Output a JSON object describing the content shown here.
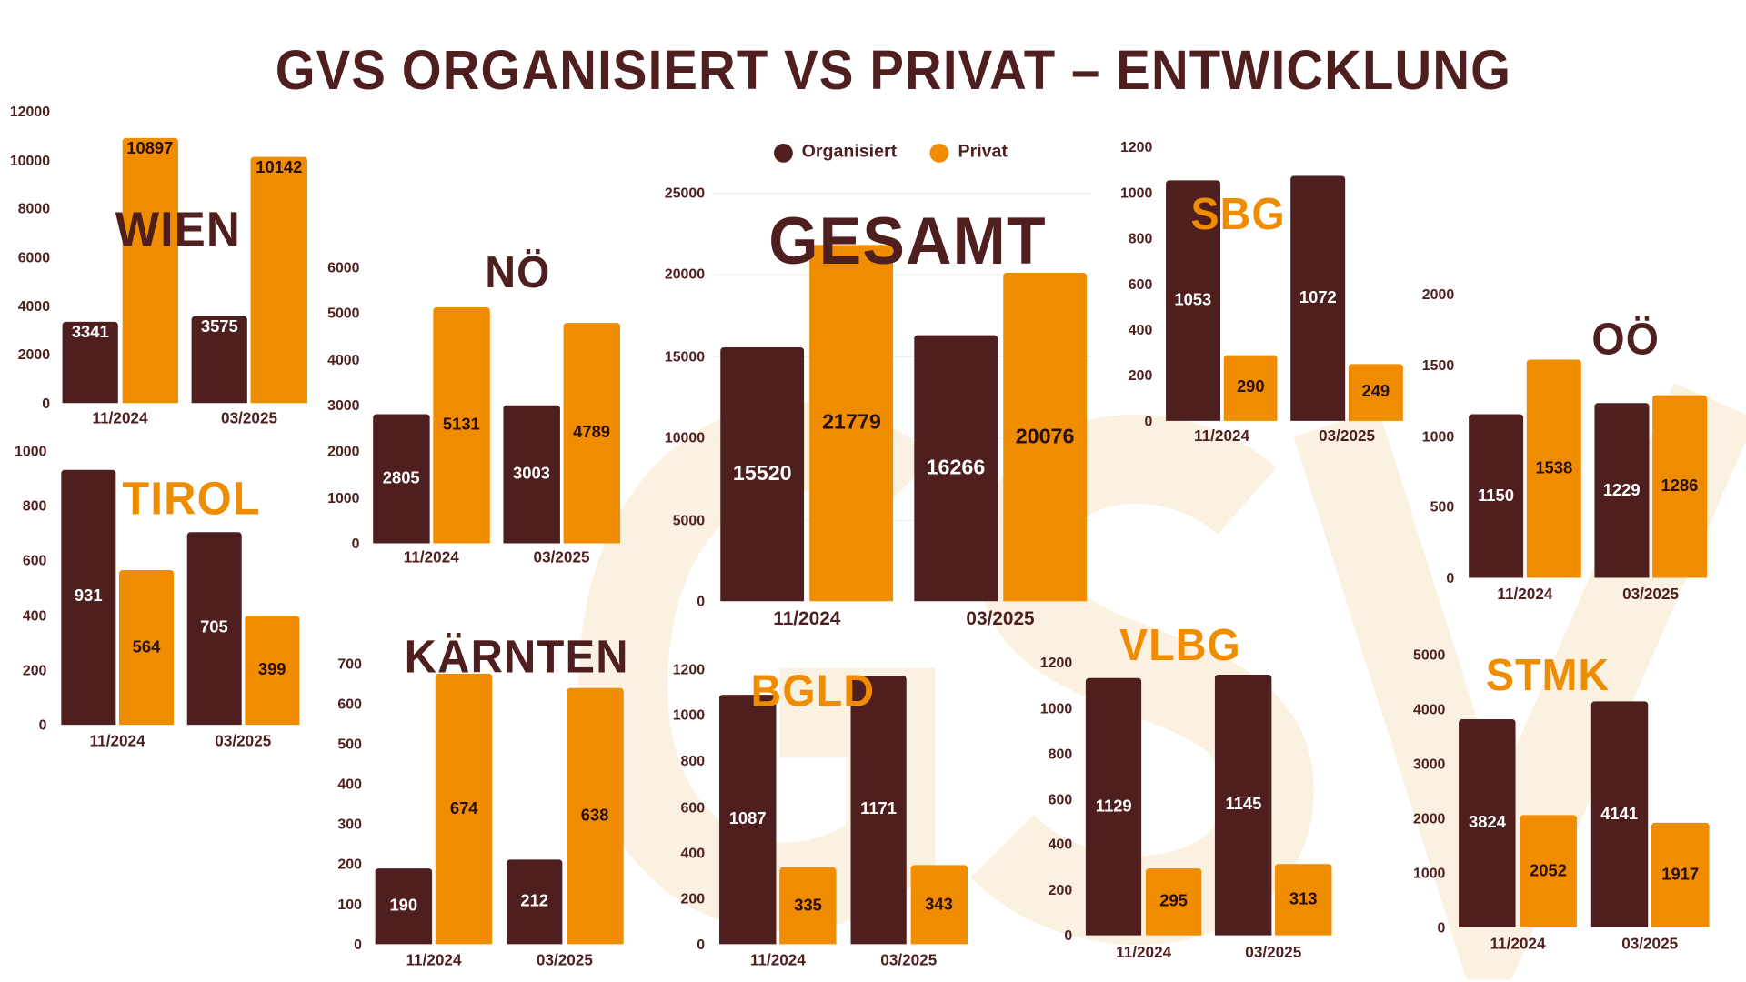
{
  "title": "GVS ORGANISIERT VS PRIVAT – ENTWICKLUNG",
  "watermark": "GSV",
  "colors": {
    "organisiert": "#4f1f1f",
    "privat": "#ef8c00"
  },
  "legend": [
    {
      "label": "Organisiert",
      "color": "#4f1f1f"
    },
    {
      "label": "Privat",
      "color": "#ef8c00"
    }
  ],
  "chart_data": [
    {
      "id": "wien",
      "type": "bar",
      "title": "WIEN",
      "title_color": "#4f1f1f",
      "categories": [
        "11/2024",
        "03/2025"
      ],
      "series": [
        {
          "name": "Organisiert",
          "values": [
            3341,
            3575
          ]
        },
        {
          "name": "Privat",
          "values": [
            10897,
            10142
          ]
        }
      ],
      "ylim": [
        0,
        12000
      ],
      "yticks": [
        0,
        2000,
        4000,
        6000,
        8000,
        10000,
        12000
      ]
    },
    {
      "id": "noe",
      "type": "bar",
      "title": "NÖ",
      "title_color": "#4f1f1f",
      "categories": [
        "11/2024",
        "03/2025"
      ],
      "series": [
        {
          "name": "Organisiert",
          "values": [
            2805,
            3003
          ]
        },
        {
          "name": "Privat",
          "values": [
            5131,
            4789
          ]
        }
      ],
      "ylim": [
        0,
        6000
      ],
      "yticks": [
        0,
        1000,
        2000,
        3000,
        4000,
        5000,
        6000
      ]
    },
    {
      "id": "gesamt",
      "type": "bar",
      "title": "GESAMT",
      "title_color": "#4f1f1f",
      "categories": [
        "11/2024",
        "03/2025"
      ],
      "series": [
        {
          "name": "Organisiert",
          "values": [
            15520,
            16266
          ]
        },
        {
          "name": "Privat",
          "values": [
            21779,
            20076
          ]
        }
      ],
      "ylim": [
        0,
        25000
      ],
      "yticks": [
        0,
        5000,
        10000,
        15000,
        20000,
        25000
      ]
    },
    {
      "id": "sbg",
      "type": "bar",
      "title": "SBG",
      "title_color": "#ef8c00",
      "categories": [
        "11/2024",
        "03/2025"
      ],
      "series": [
        {
          "name": "Organisiert",
          "values": [
            1053,
            1072
          ]
        },
        {
          "name": "Privat",
          "values": [
            290,
            249
          ]
        }
      ],
      "ylim": [
        0,
        1200
      ],
      "yticks": [
        0,
        200,
        400,
        600,
        800,
        1000,
        1200
      ]
    },
    {
      "id": "ooe",
      "type": "bar",
      "title": "OÖ",
      "title_color": "#4f1f1f",
      "categories": [
        "11/2024",
        "03/2025"
      ],
      "series": [
        {
          "name": "Organisiert",
          "values": [
            1150,
            1229
          ]
        },
        {
          "name": "Privat",
          "values": [
            1538,
            1286
          ]
        }
      ],
      "ylim": [
        0,
        2000
      ],
      "yticks": [
        0,
        500,
        1000,
        1500,
        2000
      ]
    },
    {
      "id": "tirol",
      "type": "bar",
      "title": "TIROL",
      "title_color": "#ef8c00",
      "categories": [
        "11/2024",
        "03/2025"
      ],
      "series": [
        {
          "name": "Organisiert",
          "values": [
            931,
            705
          ]
        },
        {
          "name": "Privat",
          "values": [
            564,
            399
          ]
        }
      ],
      "ylim": [
        0,
        1000
      ],
      "yticks": [
        0,
        200,
        400,
        600,
        800,
        1000
      ]
    },
    {
      "id": "kaernten",
      "type": "bar",
      "title": "KÄRNTEN",
      "title_color": "#4f1f1f",
      "categories": [
        "11/2024",
        "03/2025"
      ],
      "series": [
        {
          "name": "Organisiert",
          "values": [
            190,
            212
          ]
        },
        {
          "name": "Privat",
          "values": [
            674,
            638
          ]
        }
      ],
      "ylim": [
        0,
        700
      ],
      "yticks": [
        0,
        100,
        200,
        300,
        400,
        500,
        600,
        700
      ]
    },
    {
      "id": "bgld",
      "type": "bar",
      "title": "BGLD",
      "title_color": "#ef8c00",
      "categories": [
        "11/2024",
        "03/2025"
      ],
      "series": [
        {
          "name": "Organisiert",
          "values": [
            1087,
            1171
          ]
        },
        {
          "name": "Privat",
          "values": [
            335,
            343
          ]
        }
      ],
      "ylim": [
        0,
        1200
      ],
      "yticks": [
        0,
        200,
        400,
        600,
        800,
        1000,
        1200
      ]
    },
    {
      "id": "vlbg",
      "type": "bar",
      "title": "VLBG",
      "title_color": "#ef8c00",
      "categories": [
        "11/2024",
        "03/2025"
      ],
      "series": [
        {
          "name": "Organisiert",
          "values": [
            1129,
            1145
          ]
        },
        {
          "name": "Privat",
          "values": [
            295,
            313
          ]
        }
      ],
      "ylim": [
        0,
        1200
      ],
      "yticks": [
        0,
        200,
        400,
        600,
        800,
        1000,
        1200
      ]
    },
    {
      "id": "stmk",
      "type": "bar",
      "title": "STMK",
      "title_color": "#ef8c00",
      "categories": [
        "11/2024",
        "03/2025"
      ],
      "series": [
        {
          "name": "Organisiert",
          "values": [
            3824,
            4141
          ]
        },
        {
          "name": "Privat",
          "values": [
            2052,
            1917
          ]
        }
      ],
      "ylim": [
        0,
        5000
      ],
      "yticks": [
        0,
        1000,
        2000,
        3000,
        4000,
        5000
      ]
    }
  ]
}
